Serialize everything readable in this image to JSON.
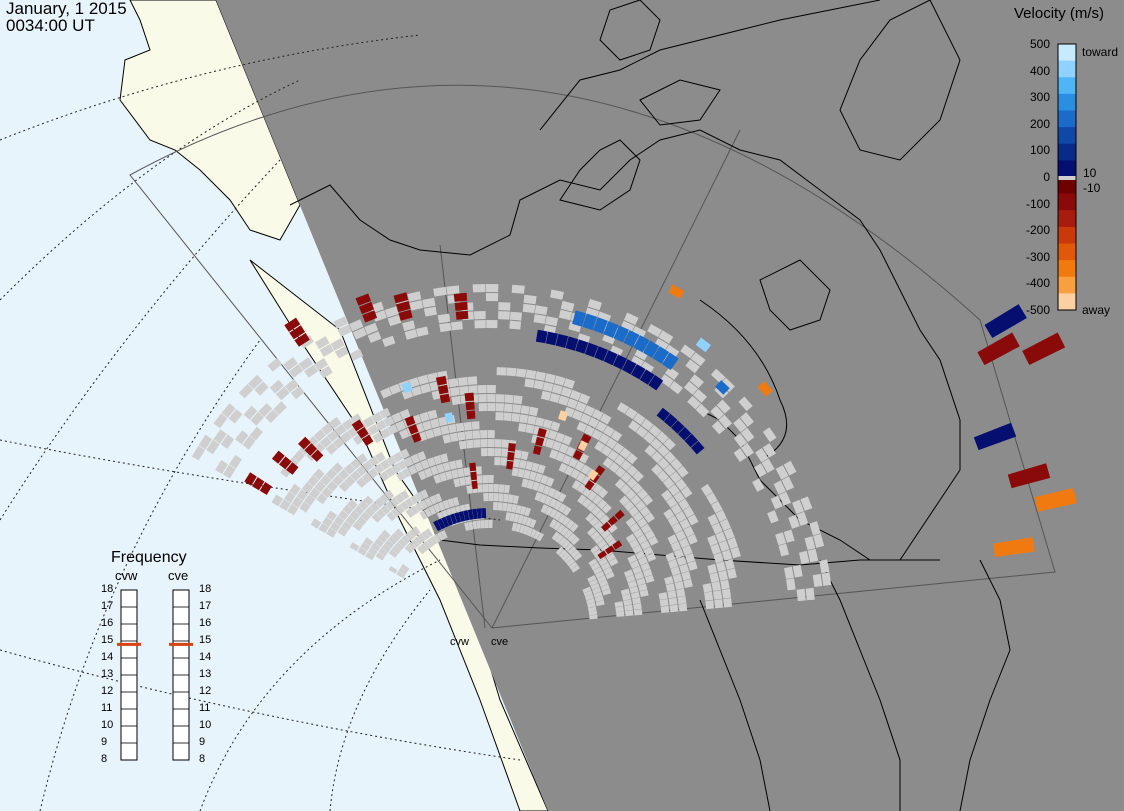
{
  "header": {
    "date": "January, 1 2015",
    "time": "0034:00 UT"
  },
  "velocity_scale": {
    "title": "Velocity (m/s)",
    "ticks": [
      "500",
      "400",
      "300",
      "200",
      "100",
      "0",
      "-100",
      "-200",
      "-300",
      "-400",
      "-500"
    ],
    "small_ticks": [
      "10",
      "-10"
    ],
    "toward_label": "toward",
    "away_label": "away",
    "colors": {
      "toward": [
        "#c8eaff",
        "#8fd1ff",
        "#4fb5f5",
        "#2a8fe0",
        "#1a6cc8",
        "#1048a8",
        "#0a2a8a",
        "#050f70"
      ],
      "away": [
        "#6e0000",
        "#8a0a0a",
        "#a81c10",
        "#c83a0a",
        "#e0580a",
        "#f07a10",
        "#f8a040",
        "#fcd0a0"
      ],
      "ground": "#cfcfcf"
    }
  },
  "frequency": {
    "title": "Frequency",
    "radars": [
      {
        "name": "cvw",
        "current_mhz": 14.8
      },
      {
        "name": "cve",
        "current_mhz": 14.8
      }
    ],
    "ticks": [
      "18",
      "17",
      "16",
      "15",
      "14",
      "13",
      "12",
      "11",
      "10",
      "9",
      "8"
    ],
    "marker_color": "#d84315"
  },
  "sites": [
    "cvw",
    "cve"
  ]
}
